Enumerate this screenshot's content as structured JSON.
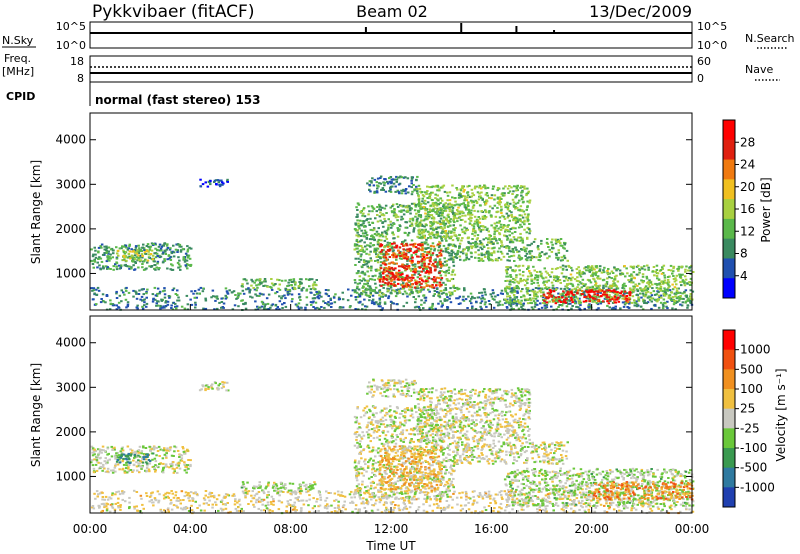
{
  "header": {
    "station": "Pykkvibaer (fitACF)",
    "beam": "Beam 02",
    "date": "13/Dec/2009"
  },
  "noise_panel": {
    "left_label": "N.Sky",
    "left_ticks": [
      "10^5",
      "10^0"
    ],
    "right_ticks": [
      "10^5",
      "10^0"
    ],
    "right_label": "N.Search"
  },
  "freq_panel": {
    "left_label_1": "Freq.",
    "left_label_2": "[MHz]",
    "left_ticks": [
      "18",
      "8"
    ],
    "right_ticks": [
      "60",
      "0"
    ],
    "right_label": "Nave",
    "cpid_label": "CPID",
    "cpid_text": "normal (fast stereo) 153"
  },
  "power_panel": {
    "ylabel": "Slant Range [km]",
    "yticks": [
      "4000",
      "3000",
      "2000",
      "1000"
    ],
    "colorbar_label": "Power [dB]",
    "colorbar_ticks": [
      "28",
      "24",
      "20",
      "16",
      "12",
      "8",
      "4"
    ],
    "colors": [
      "#0000ff",
      "#2050b0",
      "#3a8a60",
      "#5ab84a",
      "#a8d040",
      "#f0c020",
      "#f07a10",
      "#e02010",
      "#ff0000"
    ]
  },
  "velocity_panel": {
    "ylabel": "Slant Range [km]",
    "yticks": [
      "4000",
      "3000",
      "2000",
      "1000"
    ],
    "colorbar_label": "Velocity [m s⁻¹]",
    "colorbar_ticks": [
      "1000",
      "500",
      "100",
      "25",
      "-25",
      "-100",
      "-500",
      "-1000"
    ],
    "colors": [
      "#2040b0",
      "#2f7aa0",
      "#3a9a50",
      "#6ac83a",
      "#c8c8c0",
      "#f0c040",
      "#f09020",
      "#f05010",
      "#ff0000"
    ]
  },
  "xaxis": {
    "ticks": [
      "00:00",
      "04:00",
      "08:00",
      "12:00",
      "16:00",
      "20:00",
      "00:00"
    ],
    "label": "Time UT"
  },
  "chart_data": [
    {
      "type": "heatmap",
      "title": "Beam 02",
      "xlabel": "Time UT",
      "ylabel": "Slant Range [km]",
      "x_range_hours": [
        0,
        24
      ],
      "ylim": [
        180,
        4600
      ],
      "quantity": "Power [dB]",
      "clim": [
        0,
        32
      ],
      "regions": [
        {
          "t0": 0.0,
          "t1": 24.0,
          "r0": 200,
          "r1": 700,
          "value": 8
        },
        {
          "t0": 0.0,
          "t1": 4.0,
          "r0": 1100,
          "r1": 1700,
          "value": 10
        },
        {
          "t0": 1.0,
          "t1": 2.5,
          "r0": 1300,
          "r1": 1550,
          "value": 16
        },
        {
          "t0": 4.3,
          "t1": 5.5,
          "r0": 2950,
          "r1": 3150,
          "value": 6
        },
        {
          "t0": 6.0,
          "t1": 9.0,
          "r0": 650,
          "r1": 900,
          "value": 12
        },
        {
          "t0": 10.5,
          "t1": 14.5,
          "r0": 500,
          "r1": 2600,
          "value": 12
        },
        {
          "t0": 11.5,
          "t1": 14.0,
          "r0": 700,
          "r1": 1700,
          "value": 26
        },
        {
          "t0": 11.0,
          "t1": 13.0,
          "r0": 2800,
          "r1": 3200,
          "value": 8
        },
        {
          "t0": 13.0,
          "t1": 17.5,
          "r0": 1800,
          "r1": 3000,
          "value": 14
        },
        {
          "t0": 14.5,
          "t1": 19.0,
          "r0": 1300,
          "r1": 1800,
          "value": 12
        },
        {
          "t0": 16.5,
          "t1": 24.0,
          "r0": 350,
          "r1": 1200,
          "value": 14
        },
        {
          "t0": 18.0,
          "t1": 21.5,
          "r0": 350,
          "r1": 650,
          "value": 28
        }
      ]
    },
    {
      "type": "heatmap",
      "title": "Beam 02",
      "xlabel": "Time UT",
      "ylabel": "Slant Range [km]",
      "x_range_hours": [
        0,
        24
      ],
      "ylim": [
        180,
        4600
      ],
      "quantity": "Velocity [m s⁻¹]",
      "clim": [
        -1000,
        1000
      ],
      "regions": [
        {
          "t0": 0.0,
          "t1": 24.0,
          "r0": 200,
          "r1": 700,
          "value": 100
        },
        {
          "t0": 0.0,
          "t1": 4.0,
          "r0": 1100,
          "r1": 1700,
          "value": 0
        },
        {
          "t0": 1.0,
          "t1": 2.5,
          "r0": 1300,
          "r1": 1550,
          "value": -500
        },
        {
          "t0": 4.3,
          "t1": 5.5,
          "r0": 2950,
          "r1": 3150,
          "value": 0
        },
        {
          "t0": 6.0,
          "t1": 9.0,
          "r0": 650,
          "r1": 900,
          "value": -100
        },
        {
          "t0": 10.5,
          "t1": 14.5,
          "r0": 500,
          "r1": 2600,
          "value": 0
        },
        {
          "t0": 11.5,
          "t1": 14.0,
          "r0": 700,
          "r1": 1700,
          "value": 300
        },
        {
          "t0": 11.0,
          "t1": 13.0,
          "r0": 2800,
          "r1": 3200,
          "value": 0
        },
        {
          "t0": 13.0,
          "t1": 17.5,
          "r0": 1800,
          "r1": 3000,
          "value": 0
        },
        {
          "t0": 14.5,
          "t1": 19.0,
          "r0": 1300,
          "r1": 1800,
          "value": 0
        },
        {
          "t0": 16.5,
          "t1": 24.0,
          "r0": 350,
          "r1": 1200,
          "value": -100
        },
        {
          "t0": 20.0,
          "t1": 24.0,
          "r0": 500,
          "r1": 900,
          "value": 500
        }
      ]
    }
  ]
}
